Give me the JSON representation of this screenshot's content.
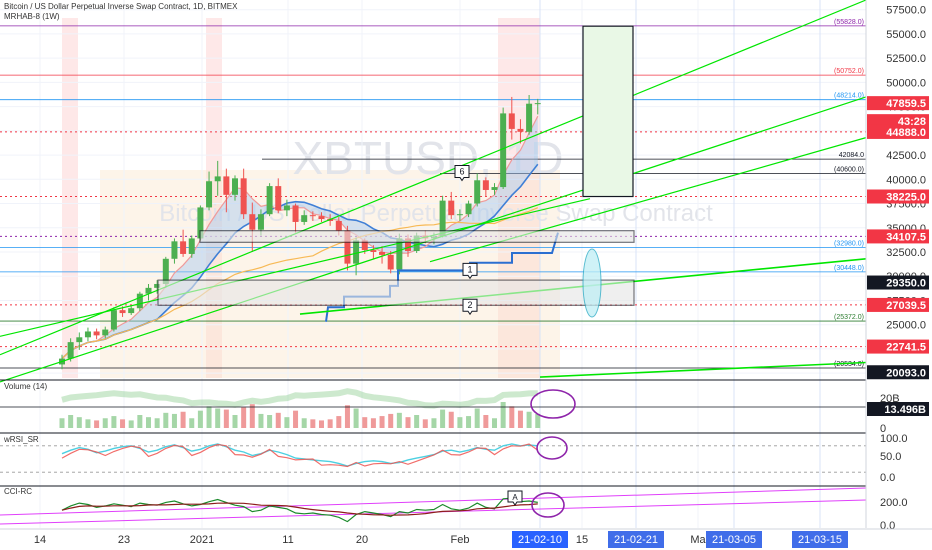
{
  "chart_data": {
    "type": "candlestick",
    "header": {
      "title": "Bitcoin / US Dollar Perpetual Inverse Swap Contract, 1D, BITMEX",
      "indicator": "MRHAB-8 (1W)"
    },
    "watermark": {
      "symbol": "XBTUSD, 1D",
      "description": "Bitcoin / US Dollar Perpetual Inverse Swap Contract"
    },
    "y_axis": {
      "range": [
        19500,
        58500
      ],
      "ticks": [
        20000,
        22500,
        25000,
        27500,
        30000,
        32500,
        35000,
        37500,
        40000,
        42500,
        45000,
        47500,
        50000,
        52500,
        55000,
        57500
      ],
      "tick_labels": [
        "20000.0",
        "22500.0",
        "25000.0",
        "27500.0",
        "30000.0",
        "32500.0",
        "35000.0",
        "37500.0",
        "40000.0",
        "42500.0",
        "45000.0",
        "47500.0",
        "50000.0",
        "52500.0",
        "55000.0",
        "57500.0"
      ]
    },
    "x_axis": {
      "tick_labels": [
        "14",
        "23",
        "2021",
        "11",
        "20",
        "Feb",
        "15",
        "Ma"
      ],
      "highlighted_labels": [
        "21-02-10",
        "21-02-21",
        "21-03-05",
        "21-03-15"
      ]
    },
    "price_tags": [
      {
        "value": 47859.5,
        "label": "47859.5",
        "color": "#f23645"
      },
      {
        "value": 46000,
        "label": "43:28",
        "color": "#f23645"
      },
      {
        "value": 44888,
        "label": "44888.0",
        "color": "#f23645"
      },
      {
        "value": 38225,
        "label": "38225.0",
        "color": "#f23645"
      },
      {
        "value": 34107.5,
        "label": "34107.5",
        "color": "#f23645"
      },
      {
        "value": 29350,
        "label": "29350.0",
        "color": "#131722"
      },
      {
        "value": 27039.5,
        "label": "27039.5",
        "color": "#f23645"
      },
      {
        "value": 22741.5,
        "label": "22741.5",
        "color": "#f23645"
      },
      {
        "value": 20093,
        "label": "20093.0",
        "color": "#131722"
      }
    ],
    "level_labels": [
      {
        "value": 55828,
        "label": "(55828.0)",
        "color": "#8e24aa"
      },
      {
        "value": 50752,
        "label": "(50752.0)",
        "color": "#f23645"
      },
      {
        "value": 48214,
        "label": "(48214.0)",
        "color": "#2196f3"
      },
      {
        "value": 42084,
        "label": "42084.0",
        "color": "#131722"
      },
      {
        "value": 40600,
        "label": "(40600.0)",
        "color": "#131722"
      },
      {
        "value": 32980,
        "label": "(32980.0)",
        "color": "#2196f3"
      },
      {
        "value": 30448,
        "label": "(30448.0)",
        "color": "#2196f3"
      },
      {
        "value": 25372,
        "label": "(25372.0)",
        "color": "#2e7d32"
      },
      {
        "value": 20534,
        "label": "(20534.0)",
        "color": "#131722"
      }
    ],
    "annotations": [
      "6",
      "1",
      "2",
      "A"
    ],
    "candles": [
      [
        20900,
        21900,
        20400,
        21500
      ],
      [
        21500,
        23600,
        21200,
        23200
      ],
      [
        23200,
        24200,
        22400,
        23700
      ],
      [
        23700,
        24700,
        23300,
        24300
      ],
      [
        24300,
        24600,
        23500,
        23900
      ],
      [
        23900,
        24800,
        23600,
        24500
      ],
      [
        24500,
        26800,
        24300,
        26500
      ],
      [
        26500,
        26900,
        25800,
        26200
      ],
      [
        26200,
        26900,
        26000,
        26700
      ],
      [
        26700,
        28400,
        26400,
        28200
      ],
      [
        28200,
        29200,
        27500,
        28800
      ],
      [
        28800,
        29600,
        28200,
        29200
      ],
      [
        29200,
        32000,
        28800,
        31800
      ],
      [
        31800,
        33900,
        31300,
        33600
      ],
      [
        33600,
        34800,
        32000,
        32300
      ],
      [
        32300,
        34200,
        31900,
        33900
      ],
      [
        33900,
        37300,
        33700,
        37100
      ],
      [
        37100,
        40800,
        36800,
        39800
      ],
      [
        39800,
        41900,
        38300,
        40300
      ],
      [
        40300,
        41100,
        36600,
        38400
      ],
      [
        38400,
        40400,
        37800,
        40100
      ],
      [
        40100,
        41100,
        35900,
        36400
      ],
      [
        36400,
        37600,
        32500,
        34800
      ],
      [
        34800,
        36900,
        34200,
        36400
      ],
      [
        36400,
        39600,
        36200,
        39300
      ],
      [
        39300,
        40100,
        36500,
        36800
      ],
      [
        36800,
        37900,
        36200,
        37300
      ],
      [
        37300,
        37500,
        34500,
        35600
      ],
      [
        35600,
        36800,
        35300,
        36300
      ],
      [
        36300,
        36700,
        35700,
        36200
      ],
      [
        36200,
        36600,
        35600,
        35900
      ],
      [
        35900,
        36400,
        35200,
        35700
      ],
      [
        35700,
        36100,
        34200,
        34700
      ],
      [
        34700,
        35200,
        30600,
        31300
      ],
      [
        31300,
        34000,
        30100,
        33700
      ],
      [
        33700,
        33900,
        32300,
        32700
      ],
      [
        32700,
        33200,
        31800,
        32500
      ],
      [
        32500,
        33100,
        31300,
        32200
      ],
      [
        32200,
        32600,
        30300,
        30700
      ],
      [
        30700,
        34400,
        30200,
        33900
      ],
      [
        33900,
        34300,
        32000,
        32600
      ],
      [
        32600,
        34500,
        32400,
        34200
      ],
      [
        34200,
        34700,
        33400,
        33900
      ],
      [
        33900,
        34500,
        33300,
        34100
      ],
      [
        34100,
        38300,
        34000,
        37800
      ],
      [
        37800,
        38700,
        35900,
        36300
      ],
      [
        36300,
        36900,
        35700,
        36400
      ],
      [
        36400,
        37800,
        36100,
        37500
      ],
      [
        37500,
        40600,
        37200,
        39900
      ],
      [
        39900,
        40200,
        38200,
        38900
      ],
      [
        38900,
        39600,
        38400,
        39200
      ],
      [
        39200,
        47400,
        39000,
        46800
      ],
      [
        46800,
        48500,
        44100,
        45200
      ],
      [
        45200,
        46200,
        43700,
        44900
      ],
      [
        44900,
        48700,
        44600,
        47800
      ],
      [
        47800,
        48300,
        46700,
        47859.5
      ]
    ],
    "volume": [
      9,
      12,
      10,
      8,
      7,
      9,
      11,
      8,
      7,
      12,
      10,
      9,
      14,
      13,
      15,
      9,
      16,
      20,
      18,
      17,
      12,
      19,
      22,
      13,
      12,
      14,
      10,
      16,
      9,
      8,
      7,
      8,
      11,
      21,
      18,
      10,
      9,
      11,
      13,
      14,
      10,
      12,
      8,
      9,
      17,
      15,
      10,
      11,
      18,
      12,
      9,
      24,
      20,
      16,
      15,
      13
    ],
    "volume_panel": {
      "name": "Volume (14)",
      "ticks": [
        "20B",
        "0"
      ],
      "last_label": "13.496B"
    },
    "wrsi_panel": {
      "name": "wRSI_SR",
      "ticks": [
        "100.0",
        "50.0",
        "0.0"
      ],
      "values": [
        62,
        70,
        76,
        72,
        64,
        68,
        74,
        78,
        80,
        74,
        66,
        70,
        78,
        82,
        76,
        68,
        72,
        80,
        84,
        78,
        70,
        66,
        58,
        62,
        70,
        66,
        60,
        52,
        50,
        48,
        46,
        44,
        40,
        34,
        40,
        44,
        46,
        44,
        40,
        42,
        48,
        52,
        56,
        60,
        68,
        70,
        66,
        70,
        76,
        72,
        70,
        80,
        84,
        80,
        82,
        80
      ]
    },
    "cci_panel": {
      "name": "CCI-RC",
      "ticks": [
        "200.0",
        "0.0"
      ],
      "values": [
        80,
        140,
        180,
        160,
        120,
        140,
        170,
        150,
        130,
        180,
        160,
        150,
        190,
        210,
        170,
        140,
        160,
        200,
        230,
        190,
        150,
        130,
        60,
        80,
        140,
        120,
        100,
        40,
        30,
        40,
        20,
        10,
        -20,
        -80,
        20,
        60,
        40,
        20,
        -10,
        60,
        40,
        90,
        80,
        90,
        160,
        100,
        80,
        110,
        180,
        120,
        100,
        240,
        250,
        200,
        210,
        190
      ]
    }
  },
  "ui": {
    "colors": {
      "up": "#26a69a",
      "up_ha": "#4caf50",
      "down": "#ef5350",
      "trendline": "#00e600",
      "accent": "#2962ff",
      "session_band": "#fde0e0"
    }
  }
}
